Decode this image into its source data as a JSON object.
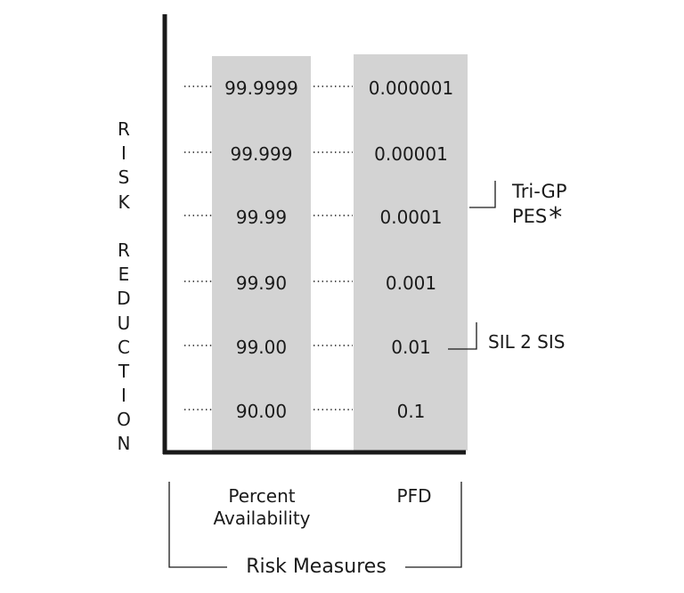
{
  "side_label": "RISK REDUCTION",
  "columns": [
    {
      "name": "Percent\nAvailability",
      "values": [
        "99.9999",
        "99.999",
        "99.99",
        "99.90",
        "99.00",
        "90.00"
      ]
    },
    {
      "name": "PFD",
      "values": [
        "0.000001",
        "0.00001",
        "0.0001",
        "0.001",
        "0.01",
        "0.1"
      ]
    }
  ],
  "group_label": "Risk Measures",
  "markers": [
    {
      "label_line1": "Tri-GP",
      "label_line2": "PES",
      "asterisk": "*"
    },
    {
      "label": "SIL 2 SIS"
    }
  ],
  "colors": {
    "column_fill": "#d3d3d3",
    "axis": "#1a1a1a"
  }
}
